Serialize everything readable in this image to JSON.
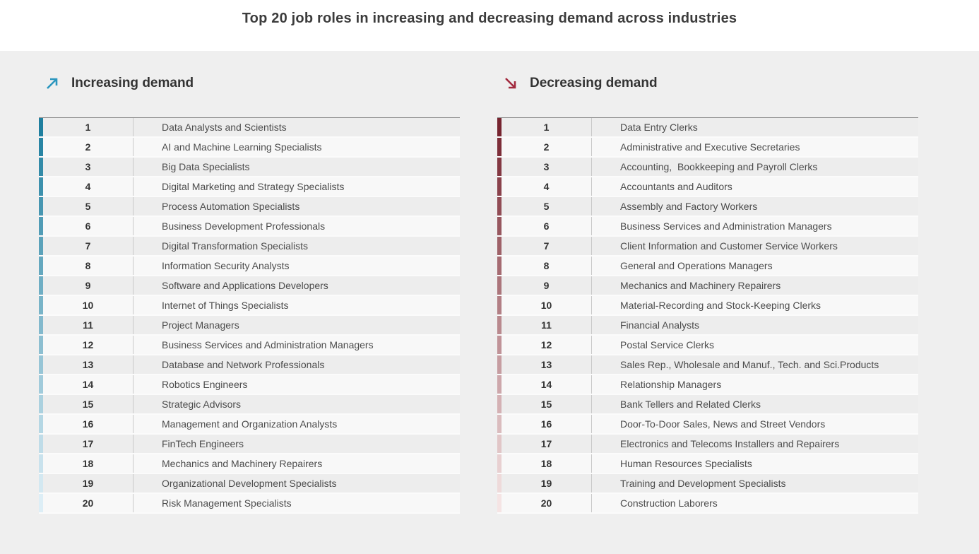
{
  "page": {
    "background_color": "#efefef",
    "header_background": "#ffffff"
  },
  "chart_data": {
    "type": "table",
    "title": "Top 20 job roles in increasing and decreasing demand across industries",
    "legend_position": "none",
    "grid": false,
    "series": [
      {
        "id": "increasing",
        "name": "Increasing demand",
        "direction": "up",
        "arrow_color": "#2B96BE",
        "accent_start": "#1F7F9F",
        "accent_end": "#DDEEF6",
        "rows": [
          {
            "rank": 1,
            "role": "Data Analysts and Scientists"
          },
          {
            "rank": 2,
            "role": "AI and Machine Learning Specialists"
          },
          {
            "rank": 3,
            "role": "Big Data Specialists"
          },
          {
            "rank": 4,
            "role": "Digital Marketing and Strategy Specialists"
          },
          {
            "rank": 5,
            "role": "Process Automation Specialists"
          },
          {
            "rank": 6,
            "role": "Business Development Professionals"
          },
          {
            "rank": 7,
            "role": "Digital Transformation Specialists"
          },
          {
            "rank": 8,
            "role": "Information Security Analysts"
          },
          {
            "rank": 9,
            "role": "Software and Applications Developers"
          },
          {
            "rank": 10,
            "role": "Internet of Things Specialists"
          },
          {
            "rank": 11,
            "role": "Project Managers"
          },
          {
            "rank": 12,
            "role": "Business Services and Administration Managers"
          },
          {
            "rank": 13,
            "role": "Database and Network Professionals"
          },
          {
            "rank": 14,
            "role": "Robotics Engineers"
          },
          {
            "rank": 15,
            "role": "Strategic Advisors"
          },
          {
            "rank": 16,
            "role": "Management and Organization Analysts"
          },
          {
            "rank": 17,
            "role": "FinTech Engineers"
          },
          {
            "rank": 18,
            "role": "Mechanics and Machinery Repairers"
          },
          {
            "rank": 19,
            "role": "Organizational Development Specialists"
          },
          {
            "rank": 20,
            "role": "Risk Management Specialists"
          }
        ]
      },
      {
        "id": "decreasing",
        "name": "Decreasing demand",
        "direction": "down",
        "arrow_color": "#A22A3E",
        "accent_start": "#76242F",
        "accent_end": "#F5E4E4",
        "rows": [
          {
            "rank": 1,
            "role": "Data Entry Clerks"
          },
          {
            "rank": 2,
            "role": "Administrative and Executive Secretaries"
          },
          {
            "rank": 3,
            "role": "Accounting,  Bookkeeping and Payroll Clerks"
          },
          {
            "rank": 4,
            "role": "Accountants and Auditors"
          },
          {
            "rank": 5,
            "role": "Assembly and Factory Workers"
          },
          {
            "rank": 6,
            "role": "Business Services and Administration Managers"
          },
          {
            "rank": 7,
            "role": "Client Information and Customer Service Workers"
          },
          {
            "rank": 8,
            "role": "General and Operations Managers"
          },
          {
            "rank": 9,
            "role": "Mechanics and Machinery Repairers"
          },
          {
            "rank": 10,
            "role": "Material-Recording and Stock-Keeping Clerks"
          },
          {
            "rank": 11,
            "role": "Financial Analysts"
          },
          {
            "rank": 12,
            "role": "Postal Service Clerks"
          },
          {
            "rank": 13,
            "role": "Sales Rep., Wholesale and Manuf., Tech. and Sci.Products"
          },
          {
            "rank": 14,
            "role": "Relationship Managers"
          },
          {
            "rank": 15,
            "role": "Bank Tellers and Related Clerks"
          },
          {
            "rank": 16,
            "role": "Door-To-Door Sales, News and Street Vendors"
          },
          {
            "rank": 17,
            "role": "Electronics and Telecoms Installers and Repairers"
          },
          {
            "rank": 18,
            "role": "Human Resources Specialists"
          },
          {
            "rank": 19,
            "role": "Training and Development Specialists"
          },
          {
            "rank": 20,
            "role": "Construction Laborers"
          }
        ]
      }
    ]
  }
}
